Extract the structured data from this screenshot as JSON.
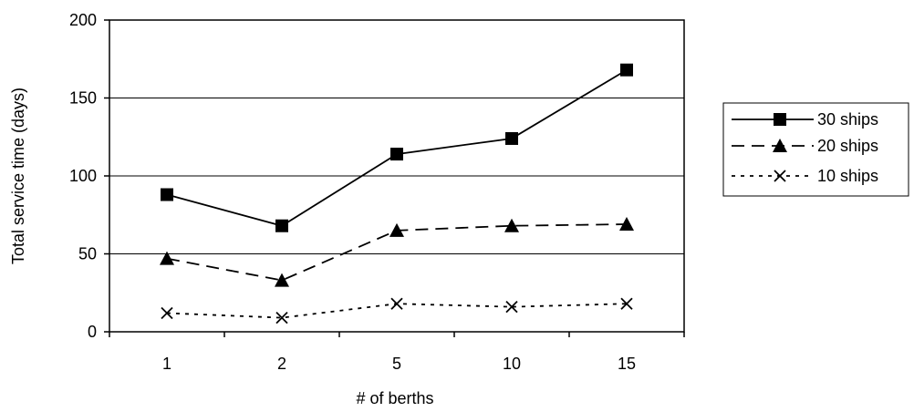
{
  "chart_data": {
    "type": "line",
    "title": "",
    "xlabel": "# of berths",
    "ylabel": "Total service time (days)",
    "categories": [
      "1",
      "2",
      "5",
      "10",
      "15"
    ],
    "ylim": [
      0,
      200
    ],
    "yticks": [
      0,
      50,
      100,
      150,
      200
    ],
    "grid": "horizontal",
    "legend_position": "right",
    "series": [
      {
        "name": "30 ships",
        "values": [
          88,
          68,
          114,
          124,
          168
        ],
        "marker": "square",
        "line_style": "solid"
      },
      {
        "name": "20 ships",
        "values": [
          47,
          33,
          65,
          68,
          69
        ],
        "marker": "triangle",
        "line_style": "dashed"
      },
      {
        "name": "10 ships",
        "values": [
          12,
          9,
          18,
          16,
          18
        ],
        "marker": "x",
        "line_style": "dotted"
      }
    ]
  }
}
